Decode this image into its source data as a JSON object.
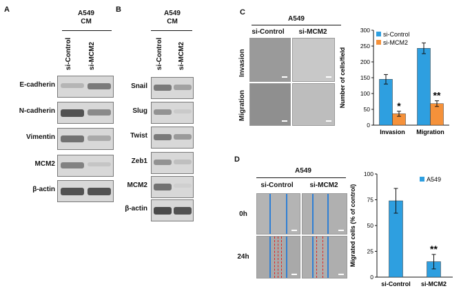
{
  "panel_a": {
    "label": "A",
    "header": "A549",
    "header2": "CM",
    "lanes": [
      "si-Control",
      "si-MCM2"
    ],
    "rows": [
      "E-cadherin",
      "N-cadherin",
      "Vimentin",
      "MCM2",
      "β-actin"
    ]
  },
  "panel_b": {
    "label": "B",
    "header": "A549",
    "header2": "CM",
    "lanes": [
      "si-Control",
      "si-MCM2"
    ],
    "rows": [
      "Snail",
      "Slug",
      "Twist",
      "Zeb1",
      "MCM2",
      "β-actin"
    ]
  },
  "panel_c": {
    "label": "C",
    "header": "A549",
    "cols": [
      "si-Control",
      "si-MCM2"
    ],
    "rows": [
      "Invasion",
      "Migration"
    ]
  },
  "panel_d": {
    "label": "D",
    "header": "A549",
    "cols": [
      "si-Control",
      "si-MCM2"
    ],
    "rows": [
      "0h",
      "24h"
    ]
  },
  "chart_data": [
    {
      "type": "bar",
      "categories": [
        "Invasion",
        "Migration"
      ],
      "series": [
        {
          "name": "si-Control",
          "values": [
            145,
            243
          ],
          "errors": [
            15,
            17
          ],
          "color": "#2e9fe0"
        },
        {
          "name": "si-MCM2",
          "values": [
            36,
            68
          ],
          "errors": [
            8,
            9
          ],
          "color": "#f5913a"
        }
      ],
      "ylabel": "Number of cells/field",
      "ylim": [
        0,
        300
      ],
      "yticks": [
        0,
        50,
        100,
        150,
        200,
        250,
        300
      ],
      "significance": [
        "*",
        "**"
      ],
      "legend": "top-left"
    },
    {
      "type": "bar",
      "categories": [
        "si-Control",
        "si-MCM2"
      ],
      "series": [
        {
          "name": "A549",
          "values": [
            74,
            15
          ],
          "errors": [
            12,
            7
          ],
          "color": "#2e9fe0"
        }
      ],
      "ylabel": "Migrated cells (% of control)",
      "ylim": [
        0,
        100
      ],
      "yticks": [
        0,
        25,
        50,
        75,
        100
      ],
      "significance": [
        "",
        "**"
      ],
      "legend": "top-right"
    }
  ]
}
